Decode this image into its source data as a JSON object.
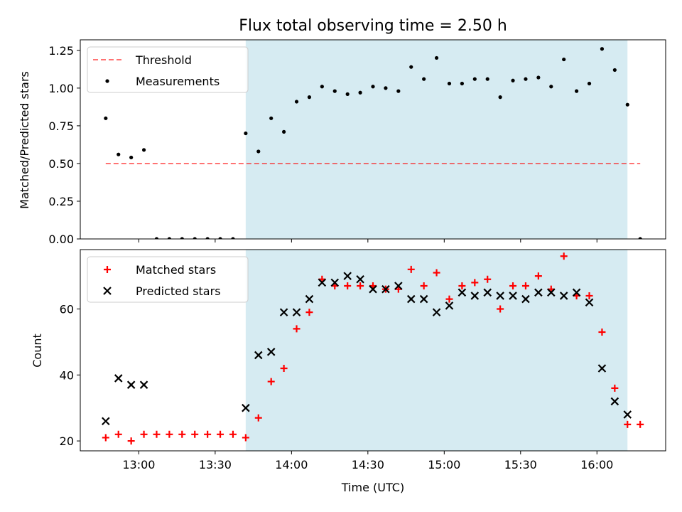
{
  "figure_title": "Flux total observing time = 2.50 h",
  "colors": {
    "shade": "#add8e6",
    "threshold": "#ff0000",
    "matched": "#ff0000",
    "predicted": "#000000",
    "measurements": "#000000"
  },
  "chart_data": [
    {
      "type": "scatter",
      "ylabel": "Matched/Predicted stars",
      "ylim": [
        0,
        1.32
      ],
      "yticks": [
        "0.00",
        "0.25",
        "0.50",
        "0.75",
        "1.00",
        "1.25"
      ],
      "yticks_values": [
        0,
        0.25,
        0.5,
        0.75,
        1.0,
        1.25
      ],
      "shaded_span": {
        "from": "13:42",
        "to": "16:12"
      },
      "threshold": {
        "name": "Threshold",
        "value": 0.5,
        "from": "12:47",
        "to": "16:17"
      },
      "legend": {
        "placement": "top-left",
        "entries": [
          "Threshold",
          "Measurements"
        ]
      },
      "series": [
        {
          "name": "Measurements",
          "points": [
            [
              "12:47",
              0.8
            ],
            [
              "12:52",
              0.56
            ],
            [
              "12:57",
              0.54
            ],
            [
              "13:02",
              0.59
            ],
            [
              "13:07",
              0.0
            ],
            [
              "13:12",
              0.0
            ],
            [
              "13:17",
              0.0
            ],
            [
              "13:22",
              0.0
            ],
            [
              "13:27",
              0.0
            ],
            [
              "13:32",
              0.0
            ],
            [
              "13:37",
              0.0
            ],
            [
              "13:42",
              0.7
            ],
            [
              "13:47",
              0.58
            ],
            [
              "13:52",
              0.8
            ],
            [
              "13:57",
              0.71
            ],
            [
              "14:02",
              0.91
            ],
            [
              "14:07",
              0.94
            ],
            [
              "14:12",
              1.01
            ],
            [
              "14:17",
              0.98
            ],
            [
              "14:22",
              0.96
            ],
            [
              "14:27",
              0.97
            ],
            [
              "14:32",
              1.01
            ],
            [
              "14:37",
              1.0
            ],
            [
              "14:42",
              0.98
            ],
            [
              "14:47",
              1.14
            ],
            [
              "14:52",
              1.06
            ],
            [
              "14:57",
              1.2
            ],
            [
              "15:02",
              1.03
            ],
            [
              "15:07",
              1.03
            ],
            [
              "15:12",
              1.06
            ],
            [
              "15:17",
              1.06
            ],
            [
              "15:22",
              0.94
            ],
            [
              "15:27",
              1.05
            ],
            [
              "15:32",
              1.06
            ],
            [
              "15:37",
              1.07
            ],
            [
              "15:42",
              1.01
            ],
            [
              "15:47",
              1.19
            ],
            [
              "15:52",
              0.98
            ],
            [
              "15:57",
              1.03
            ],
            [
              "16:02",
              1.26
            ],
            [
              "16:07",
              1.12
            ],
            [
              "16:12",
              0.89
            ],
            [
              "16:17",
              0.0
            ]
          ]
        }
      ]
    },
    {
      "type": "scatter",
      "xlabel": "Time (UTC)",
      "ylabel": "Count",
      "ylim": [
        17,
        78
      ],
      "yticks": [
        "20",
        "40",
        "60"
      ],
      "yticks_values": [
        20,
        40,
        60
      ],
      "xlim": [
        "12:37",
        "16:27"
      ],
      "xticks": [
        "13:00",
        "13:30",
        "14:00",
        "14:30",
        "15:00",
        "15:30",
        "16:00"
      ],
      "shaded_span": {
        "from": "13:42",
        "to": "16:12"
      },
      "legend": {
        "placement": "top-left",
        "entries": [
          "Matched stars",
          "Predicted stars"
        ]
      },
      "series": [
        {
          "name": "Matched stars",
          "marker": "plus",
          "points": [
            [
              "12:47",
              21
            ],
            [
              "12:52",
              22
            ],
            [
              "12:57",
              20
            ],
            [
              "13:02",
              22
            ],
            [
              "13:07",
              22
            ],
            [
              "13:12",
              22
            ],
            [
              "13:17",
              22
            ],
            [
              "13:22",
              22
            ],
            [
              "13:27",
              22
            ],
            [
              "13:32",
              22
            ],
            [
              "13:37",
              22
            ],
            [
              "13:42",
              21
            ],
            [
              "13:47",
              27
            ],
            [
              "13:52",
              38
            ],
            [
              "13:57",
              42
            ],
            [
              "14:02",
              54
            ],
            [
              "14:07",
              59
            ],
            [
              "14:12",
              69
            ],
            [
              "14:17",
              67
            ],
            [
              "14:22",
              67
            ],
            [
              "14:27",
              67
            ],
            [
              "14:32",
              67
            ],
            [
              "14:37",
              66
            ],
            [
              "14:42",
              66
            ],
            [
              "14:47",
              72
            ],
            [
              "14:52",
              67
            ],
            [
              "14:57",
              71
            ],
            [
              "15:02",
              63
            ],
            [
              "15:07",
              67
            ],
            [
              "15:12",
              68
            ],
            [
              "15:17",
              69
            ],
            [
              "15:22",
              60
            ],
            [
              "15:27",
              67
            ],
            [
              "15:32",
              67
            ],
            [
              "15:37",
              70
            ],
            [
              "15:42",
              66
            ],
            [
              "15:47",
              76
            ],
            [
              "15:52",
              64
            ],
            [
              "15:57",
              64
            ],
            [
              "16:02",
              53
            ],
            [
              "16:07",
              36
            ],
            [
              "16:12",
              25
            ],
            [
              "16:17",
              25
            ]
          ]
        },
        {
          "name": "Predicted stars",
          "marker": "x",
          "points": [
            [
              "12:47",
              26
            ],
            [
              "12:52",
              39
            ],
            [
              "12:57",
              37
            ],
            [
              "13:02",
              37
            ],
            [
              "13:42",
              30
            ],
            [
              "13:47",
              46
            ],
            [
              "13:52",
              47
            ],
            [
              "13:57",
              59
            ],
            [
              "14:02",
              59
            ],
            [
              "14:07",
              63
            ],
            [
              "14:12",
              68
            ],
            [
              "14:17",
              68
            ],
            [
              "14:22",
              70
            ],
            [
              "14:27",
              69
            ],
            [
              "14:32",
              66
            ],
            [
              "14:37",
              66
            ],
            [
              "14:42",
              67
            ],
            [
              "14:47",
              63
            ],
            [
              "14:52",
              63
            ],
            [
              "14:57",
              59
            ],
            [
              "15:02",
              61
            ],
            [
              "15:07",
              65
            ],
            [
              "15:12",
              64
            ],
            [
              "15:17",
              65
            ],
            [
              "15:22",
              64
            ],
            [
              "15:27",
              64
            ],
            [
              "15:32",
              63
            ],
            [
              "15:37",
              65
            ],
            [
              "15:42",
              65
            ],
            [
              "15:47",
              64
            ],
            [
              "15:52",
              65
            ],
            [
              "15:57",
              62
            ],
            [
              "16:02",
              42
            ],
            [
              "16:07",
              32
            ],
            [
              "16:12",
              28
            ]
          ]
        }
      ]
    }
  ]
}
